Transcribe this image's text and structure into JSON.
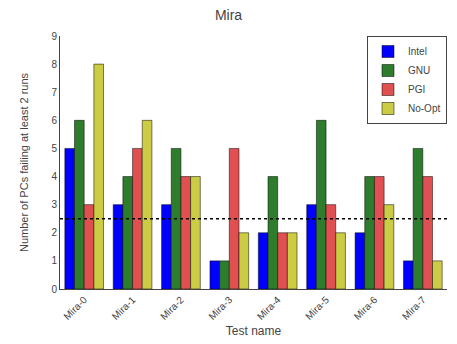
{
  "chart_data": {
    "type": "bar",
    "title": "Mira",
    "xlabel": "Test name",
    "ylabel": "Number of PCs failing at least 2 runs",
    "categories": [
      "Mira-0",
      "Mira-1",
      "Mira-2",
      "Mira-3",
      "Mira-4",
      "Mira-5",
      "Mira-6",
      "Mira-7"
    ],
    "series": [
      {
        "name": "Intel",
        "color": "#0000ff",
        "values": [
          5,
          3,
          3,
          1,
          2,
          3,
          2,
          1
        ]
      },
      {
        "name": "GNU",
        "color": "#2d7d2d",
        "values": [
          6,
          4,
          5,
          1,
          4,
          6,
          4,
          5
        ]
      },
      {
        "name": "PGI",
        "color": "#e05050",
        "values": [
          3,
          5,
          4,
          5,
          2,
          3,
          4,
          4
        ]
      },
      {
        "name": "No-Opt",
        "color": "#cccc44",
        "values": [
          8,
          6,
          4,
          2,
          2,
          2,
          3,
          1
        ]
      }
    ],
    "hline": {
      "value": 2.5,
      "line_style": "dotted",
      "color": "#000000"
    },
    "ylim": [
      0,
      9
    ],
    "yticks": [
      0,
      1,
      2,
      3,
      4,
      5,
      6,
      7,
      8,
      9
    ],
    "grid": false,
    "legend": "upper right"
  }
}
